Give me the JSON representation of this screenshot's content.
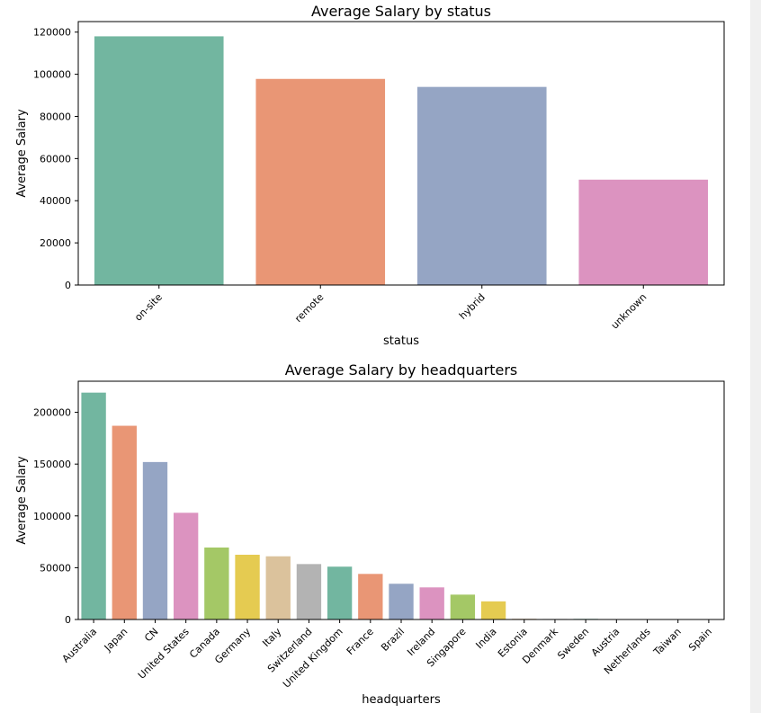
{
  "chart_data": [
    {
      "type": "bar",
      "title": "Average Salary by status",
      "xlabel": "status",
      "ylabel": "Average Salary",
      "ylim": [
        0,
        125000
      ],
      "yticks": [
        0,
        20000,
        40000,
        60000,
        80000,
        100000,
        120000
      ],
      "categories": [
        "on-site",
        "remote",
        "hybrid",
        "unknown"
      ],
      "values": [
        118000,
        97800,
        94000,
        50000
      ],
      "colors": [
        "#72b6a0",
        "#e99675",
        "#95a5c4",
        "#dc93c0"
      ],
      "grid": false,
      "legend": "none"
    },
    {
      "type": "bar",
      "title": "Average Salary by headquarters",
      "xlabel": "headquarters",
      "ylabel": "Average Salary",
      "ylim": [
        0,
        230000
      ],
      "yticks": [
        0,
        50000,
        100000,
        150000,
        200000
      ],
      "categories": [
        "Australia",
        "Japan",
        "CN",
        "United States",
        "Canada",
        "Germany",
        "Italy",
        "Switzerland",
        "United Kingdom",
        "France",
        "Brazil",
        "Ireland",
        "Singapore",
        "India",
        "Estonia",
        "Denmark",
        "Sweden",
        "Austria",
        "Netherlands",
        "Taiwan",
        "Spain"
      ],
      "values": [
        219000,
        187000,
        152000,
        103000,
        69500,
        62500,
        61000,
        53500,
        51000,
        44000,
        34500,
        31000,
        24000,
        17500,
        700,
        500,
        600,
        200,
        100,
        100,
        80
      ],
      "colors": [
        "#72b6a0",
        "#e99675",
        "#95a5c4",
        "#dc93c0",
        "#a4c866",
        "#e5cb51",
        "#dbc29c",
        "#b3b3b3"
      ],
      "grid": false,
      "legend": "none"
    }
  ]
}
